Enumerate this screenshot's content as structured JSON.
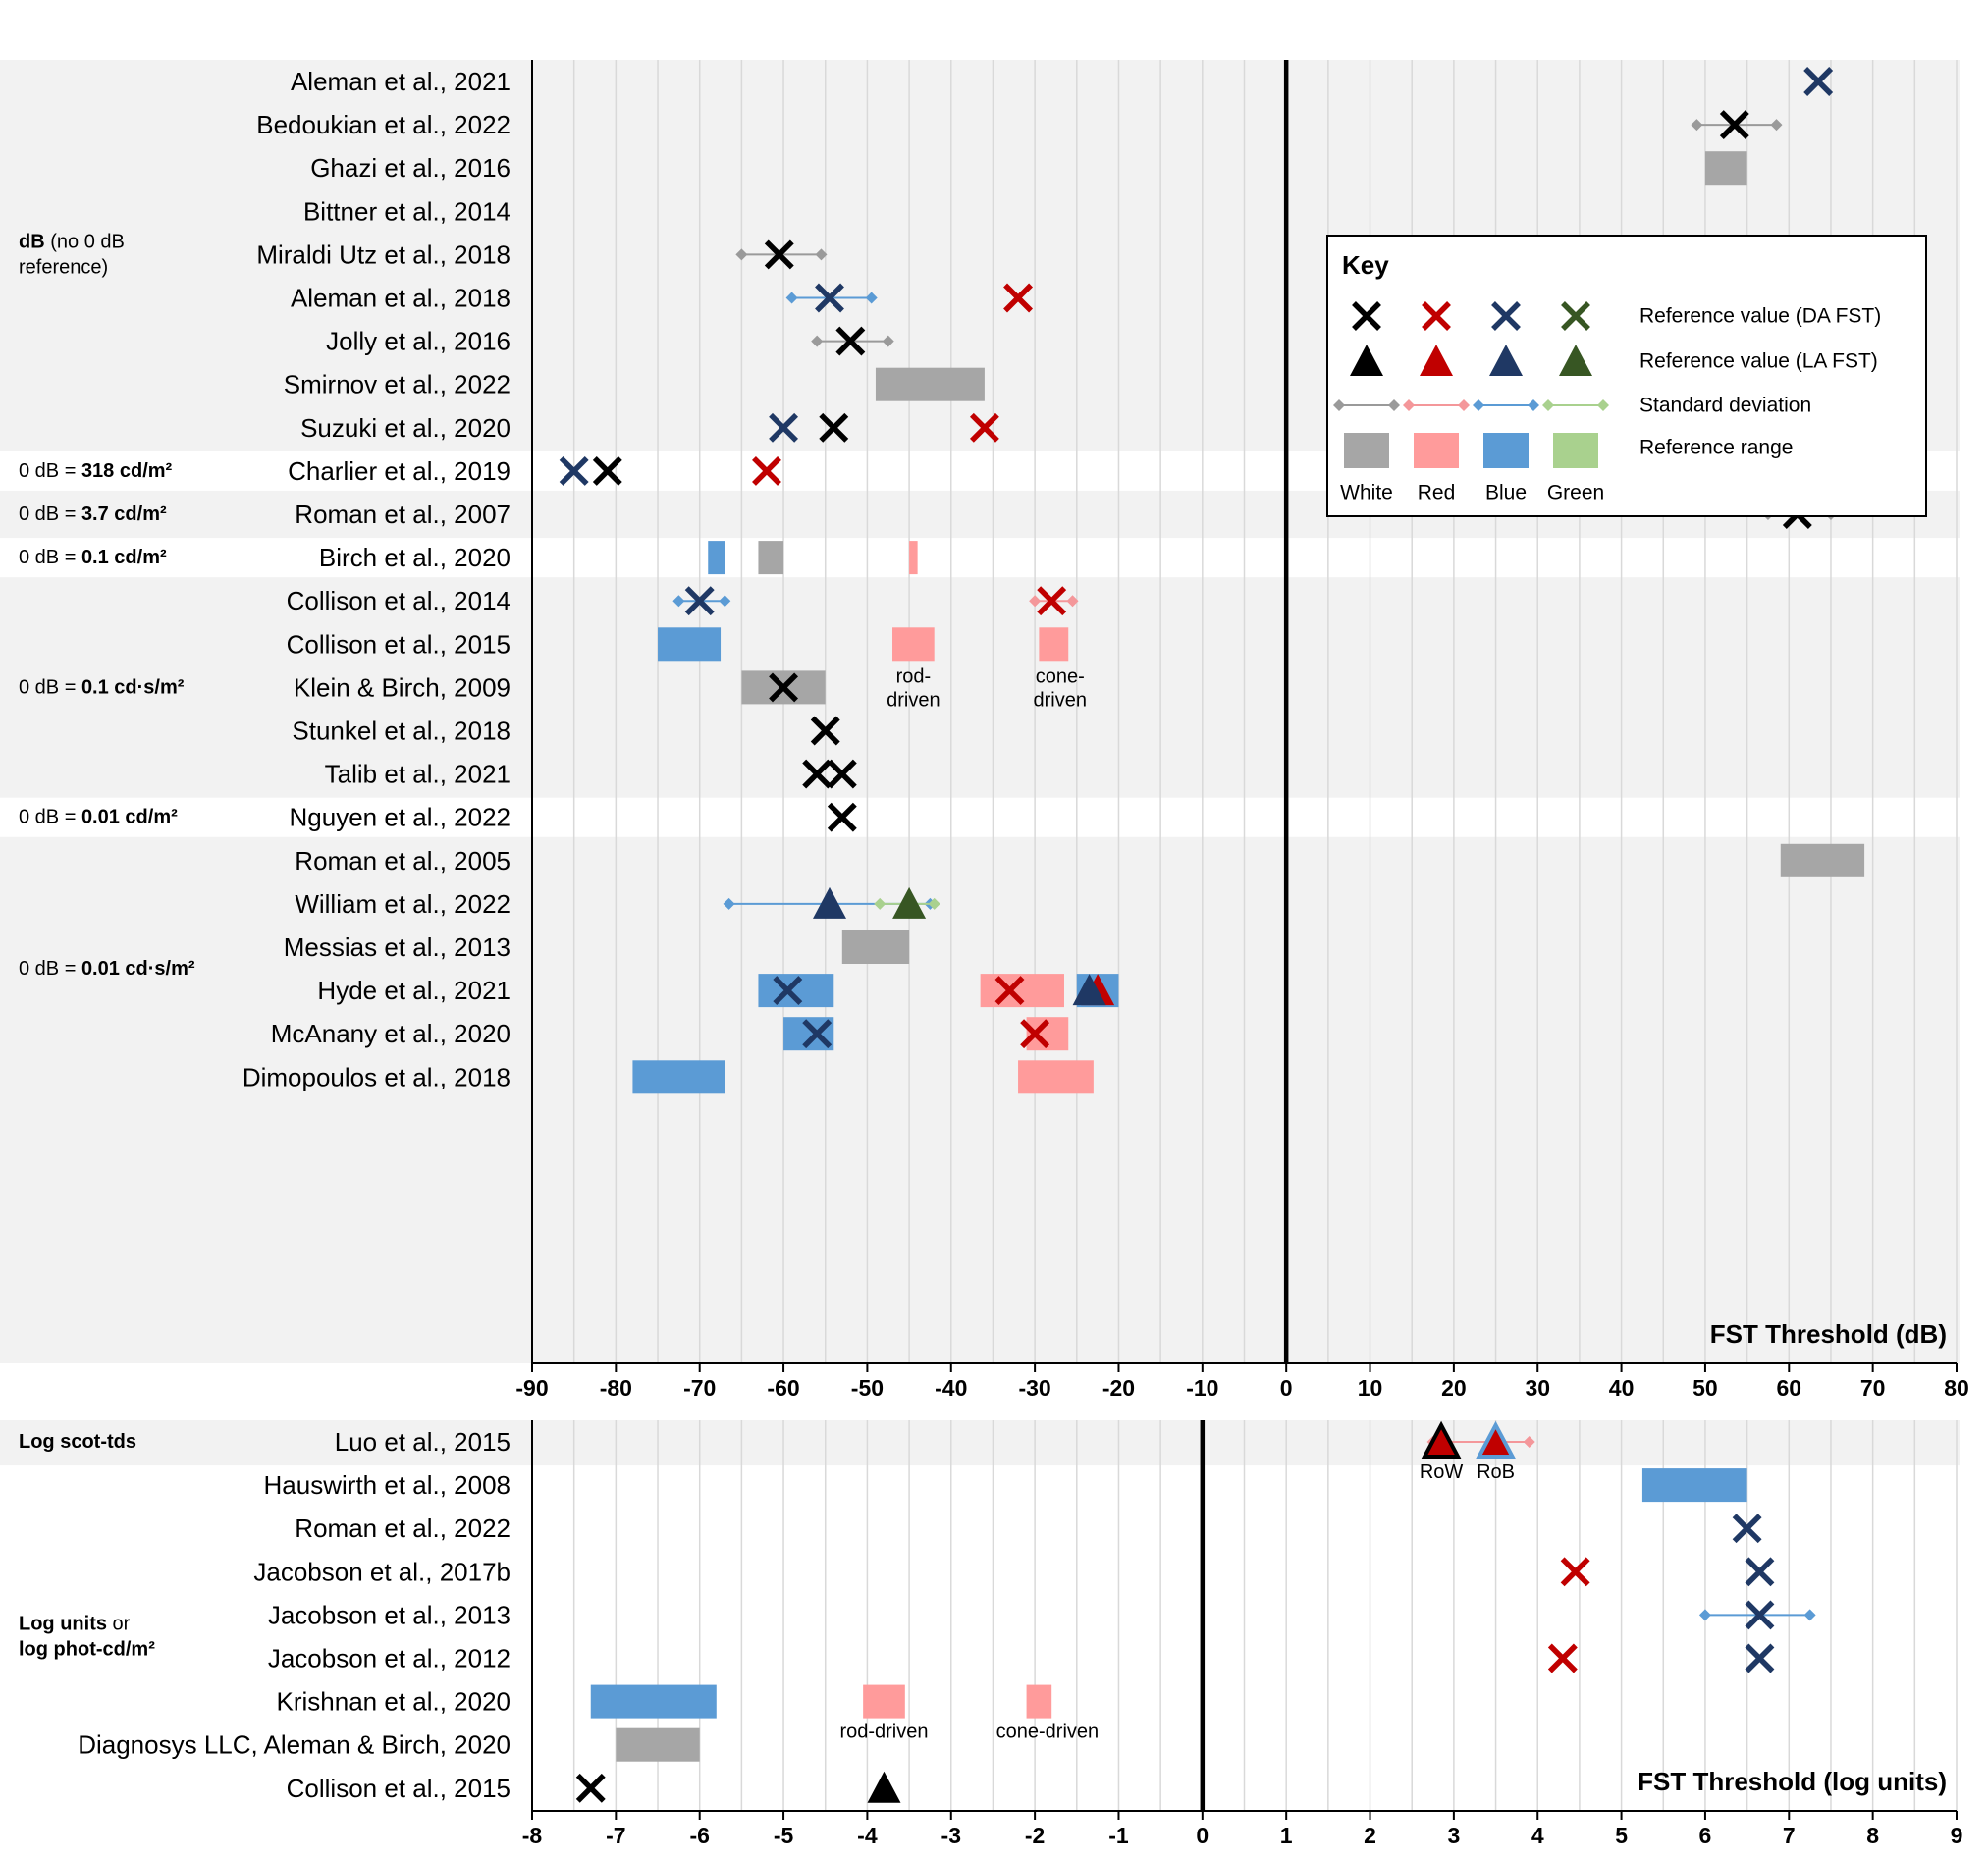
{
  "colors": {
    "white_x": "#000000",
    "white_sd": "#9a9a9a",
    "white_range": "#a6a6a6",
    "red_x": "#c00000",
    "red_sd": "#f4979a",
    "red_range": "#ff9b9b",
    "blue_x": "#1f3864",
    "blue_sd": "#5b9bd5",
    "blue_range": "#5b9bd5",
    "green_x": "#375623",
    "green_sd": "#a9d18e",
    "green_range": "#a9d18e",
    "band": "#f2f2f2"
  },
  "legend": {
    "title": "Key",
    "rows": [
      "Reference value (DA FST)",
      "Reference value (LA FST)",
      "Standard deviation",
      "Reference range"
    ],
    "colors": [
      "White",
      "Red",
      "Blue",
      "Green"
    ]
  },
  "chart_data": [
    {
      "type": "scatter",
      "title": "FST Threshold (dB)",
      "xlabel": "FST Threshold (dB)",
      "xlim": [
        -90,
        80
      ],
      "xticks": [
        -90,
        -80,
        -70,
        -60,
        -50,
        -40,
        -30,
        -20,
        -10,
        0,
        10,
        20,
        30,
        40,
        50,
        60,
        70,
        80
      ],
      "groups": [
        {
          "label_plain": "dB",
          "label_rest": " (no 0 dB",
          "label_line2": "reference)",
          "shaded": true,
          "rows": [
            0,
            8
          ]
        },
        {
          "label_plain": "0 dB = ",
          "label_bold": "318 cd/m²",
          "shaded": false,
          "rows": [
            9,
            9
          ]
        },
        {
          "label_plain": "0 dB = ",
          "label_bold": "3.7 cd/m²",
          "shaded": true,
          "rows": [
            10,
            10
          ]
        },
        {
          "label_plain": "0 dB = ",
          "label_bold": "0.1 cd/m²",
          "shaded": false,
          "rows": [
            11,
            11
          ]
        },
        {
          "label_plain": "0 dB = ",
          "label_bold": "0.1 cd·s/m²",
          "shaded": true,
          "rows": [
            12,
            16
          ]
        },
        {
          "label_plain": "0 dB = ",
          "label_bold": "0.01 cd/m²",
          "shaded": false,
          "rows": [
            17,
            17
          ]
        },
        {
          "label_plain": "0 dB = ",
          "label_bold": "0.01 cd·s/m²",
          "shaded": true,
          "rows": [
            18,
            23
          ]
        }
      ],
      "studies": [
        "Aleman et al., 2021",
        "Bedoukian et al., 2022",
        "Ghazi et al., 2016",
        "Bittner et al., 2014",
        "Miraldi Utz et al., 2018",
        "Aleman et al., 2018",
        "Jolly et al., 2016",
        "Smirnov et al., 2022",
        "Suzuki et al., 2020",
        "Charlier et al., 2019",
        "Roman et al., 2007",
        "Birch et al., 2020",
        "Collison et al., 2014",
        "Collison et al., 2015",
        "Klein & Birch, 2009",
        "Stunkel et al., 2018",
        "Talib et al., 2021",
        "Nguyen et al., 2022",
        "Roman et al., 2005",
        "William et al., 2022",
        "Messias et al., 2013",
        "Hyde et al., 2021",
        "McAnany et al., 2020",
        "Dimopoulos et al., 2018"
      ],
      "marks": [
        {
          "row": 0,
          "kind": "x",
          "color": "blue",
          "x": 63.5
        },
        {
          "row": 1,
          "kind": "sd",
          "color": "white",
          "x1": 49,
          "x2": 58.5
        },
        {
          "row": 1,
          "kind": "x",
          "color": "white",
          "x": 53.5
        },
        {
          "row": 2,
          "kind": "range",
          "color": "white",
          "x1": 50,
          "x2": 55
        },
        {
          "row": 4,
          "kind": "sd",
          "color": "white",
          "x1": -65,
          "x2": -55.5
        },
        {
          "row": 4,
          "kind": "x",
          "color": "white",
          "x": -60.5
        },
        {
          "row": 5,
          "kind": "sd",
          "color": "blue",
          "x1": -59,
          "x2": -49.5
        },
        {
          "row": 5,
          "kind": "x",
          "color": "blue",
          "x": -54.5
        },
        {
          "row": 5,
          "kind": "x",
          "color": "red",
          "x": -32
        },
        {
          "row": 6,
          "kind": "sd",
          "color": "white",
          "x1": -56,
          "x2": -47.5
        },
        {
          "row": 6,
          "kind": "x",
          "color": "white",
          "x": -52
        },
        {
          "row": 7,
          "kind": "range",
          "color": "white",
          "x1": -49,
          "x2": -36
        },
        {
          "row": 8,
          "kind": "x",
          "color": "blue",
          "x": -60
        },
        {
          "row": 8,
          "kind": "x",
          "color": "white",
          "x": -54
        },
        {
          "row": 8,
          "kind": "x",
          "color": "red",
          "x": -36
        },
        {
          "row": 9,
          "kind": "x",
          "color": "blue",
          "x": -85
        },
        {
          "row": 9,
          "kind": "x",
          "color": "white",
          "x": -81
        },
        {
          "row": 9,
          "kind": "x",
          "color": "red",
          "x": -62
        },
        {
          "row": 10,
          "kind": "sd",
          "color": "white",
          "x1": 57.5,
          "x2": 65
        },
        {
          "row": 10,
          "kind": "x",
          "color": "white",
          "x": 61
        },
        {
          "row": 11,
          "kind": "range",
          "color": "blue",
          "x1": -69,
          "x2": -67
        },
        {
          "row": 11,
          "kind": "range",
          "color": "white",
          "x1": -63,
          "x2": -60
        },
        {
          "row": 11,
          "kind": "range",
          "color": "red",
          "x1": -45,
          "x2": -44
        },
        {
          "row": 12,
          "kind": "sd",
          "color": "blue",
          "x1": -72.5,
          "x2": -67
        },
        {
          "row": 12,
          "kind": "x",
          "color": "blue",
          "x": -70
        },
        {
          "row": 12,
          "kind": "sd",
          "color": "red",
          "x1": -30,
          "x2": -25.5
        },
        {
          "row": 12,
          "kind": "x",
          "color": "red",
          "x": -28
        },
        {
          "row": 13,
          "kind": "range",
          "color": "blue",
          "x1": -75,
          "x2": -67.5
        },
        {
          "row": 13,
          "kind": "range",
          "color": "red",
          "x1": -47,
          "x2": -42
        },
        {
          "row": 13,
          "kind": "range",
          "color": "red",
          "x1": -29.5,
          "x2": -26
        },
        {
          "row": 14,
          "kind": "range",
          "color": "white",
          "x1": -65,
          "x2": -55
        },
        {
          "row": 14,
          "kind": "x",
          "color": "white",
          "x": -60
        },
        {
          "row": 15,
          "kind": "x",
          "color": "white",
          "x": -55
        },
        {
          "row": 16,
          "kind": "x",
          "color": "white",
          "x": -56
        },
        {
          "row": 16,
          "kind": "x",
          "color": "white",
          "x": -53
        },
        {
          "row": 17,
          "kind": "x",
          "color": "white",
          "x": -53
        },
        {
          "row": 18,
          "kind": "range",
          "color": "white",
          "x1": 59,
          "x2": 69
        },
        {
          "row": 19,
          "kind": "sd",
          "color": "blue",
          "x1": -66.5,
          "x2": -42.5
        },
        {
          "row": 19,
          "kind": "sd",
          "color": "green",
          "x1": -48.5,
          "x2": -42
        },
        {
          "row": 19,
          "kind": "tri",
          "color": "blue",
          "x": -54.5
        },
        {
          "row": 19,
          "kind": "tri",
          "color": "green",
          "x": -45
        },
        {
          "row": 20,
          "kind": "range",
          "color": "white",
          "x1": -53,
          "x2": -45
        },
        {
          "row": 21,
          "kind": "range",
          "color": "blue",
          "x1": -63,
          "x2": -54
        },
        {
          "row": 21,
          "kind": "x",
          "color": "blue",
          "x": -59.5
        },
        {
          "row": 21,
          "kind": "range",
          "color": "red",
          "x1": -36.5,
          "x2": -26.5
        },
        {
          "row": 21,
          "kind": "x",
          "color": "red",
          "x": -33
        },
        {
          "row": 21,
          "kind": "range",
          "color": "blue",
          "x1": -25,
          "x2": -20
        },
        {
          "row": 21,
          "kind": "tri",
          "color": "red",
          "x": -22.5
        },
        {
          "row": 21,
          "kind": "tri",
          "color": "blue",
          "x": -23.5
        },
        {
          "row": 22,
          "kind": "range",
          "color": "blue",
          "x1": -60,
          "x2": -54
        },
        {
          "row": 22,
          "kind": "range",
          "color": "red",
          "x1": -31,
          "x2": -26
        },
        {
          "row": 22,
          "kind": "x",
          "color": "blue",
          "x": -56
        },
        {
          "row": 22,
          "kind": "x",
          "color": "red",
          "x": -30
        },
        {
          "row": 23,
          "kind": "range",
          "color": "blue",
          "x1": -78,
          "x2": -67
        },
        {
          "row": 23,
          "kind": "range",
          "color": "red",
          "x1": -32,
          "x2": -23
        }
      ],
      "annotations": [
        {
          "text": "rod-",
          "text2": "driven",
          "x": -44.5,
          "row": 14
        },
        {
          "text": "cone-",
          "text2": "driven",
          "x": -27,
          "row": 14
        }
      ]
    },
    {
      "type": "scatter",
      "title": "FST Threshold (log units)",
      "xlabel": "FST Threshold (log units)",
      "xlim": [
        -8,
        9
      ],
      "xticks": [
        -8,
        -7,
        -6,
        -5,
        -4,
        -3,
        -2,
        -1,
        0,
        1,
        2,
        3,
        4,
        5,
        6,
        7,
        8,
        9
      ],
      "groups": [
        {
          "label_bold": "Log scot-tds",
          "shaded": true,
          "rows": [
            0,
            0
          ]
        },
        {
          "label_bold": "Log units",
          "label_rest": " or",
          "label_bold2": "log phot-cd/m²",
          "shaded": false,
          "rows": [
            1,
            8
          ]
        }
      ],
      "studies": [
        "Luo et al., 2015",
        "Hauswirth et al., 2008",
        "Roman et al., 2022",
        "Jacobson et al., 2017b",
        "Jacobson et al., 2013",
        "Jacobson et al., 2012",
        "Krishnan et al., 2020",
        "Diagnosys LLC, Aleman & Birch, 2020",
        "Collison et al., 2015"
      ],
      "marks": [
        {
          "row": 0,
          "kind": "sd",
          "color": "red",
          "x1": 2.75,
          "x2": 3.9
        },
        {
          "row": 0,
          "kind": "tri_outline",
          "color": "white",
          "inner": "red",
          "x": 2.85
        },
        {
          "row": 0,
          "kind": "tri_outline",
          "color": "blue",
          "inner": "red",
          "x": 3.5
        },
        {
          "row": 1,
          "kind": "range",
          "color": "blue",
          "x1": 5.25,
          "x2": 6.5
        },
        {
          "row": 2,
          "kind": "x",
          "color": "blue",
          "x": 6.5
        },
        {
          "row": 3,
          "kind": "x",
          "color": "red",
          "x": 4.45
        },
        {
          "row": 3,
          "kind": "x",
          "color": "blue",
          "x": 6.65
        },
        {
          "row": 4,
          "kind": "sd",
          "color": "blue",
          "x1": 6,
          "x2": 7.25
        },
        {
          "row": 4,
          "kind": "x",
          "color": "blue",
          "x": 6.65
        },
        {
          "row": 5,
          "kind": "x",
          "color": "red",
          "x": 4.3
        },
        {
          "row": 5,
          "kind": "x",
          "color": "blue",
          "x": 6.65
        },
        {
          "row": 6,
          "kind": "range",
          "color": "blue",
          "x1": -7.3,
          "x2": -5.8
        },
        {
          "row": 6,
          "kind": "range",
          "color": "red",
          "x1": -4.05,
          "x2": -3.55
        },
        {
          "row": 6,
          "kind": "range",
          "color": "red",
          "x1": -2.1,
          "x2": -1.8
        },
        {
          "row": 7,
          "kind": "range",
          "color": "white",
          "x1": -7,
          "x2": -6
        },
        {
          "row": 8,
          "kind": "x",
          "color": "white",
          "x": -7.3
        },
        {
          "row": 8,
          "kind": "tri",
          "color": "white",
          "x": -3.8
        }
      ],
      "annotations": [
        {
          "text": "RoW",
          "x": 2.85,
          "row": 0,
          "below": true
        },
        {
          "text": "RoB",
          "x": 3.5,
          "row": 0,
          "below": true
        },
        {
          "text": "rod-driven",
          "x": -3.8,
          "row": 6,
          "below": true
        },
        {
          "text": "cone-driven",
          "x": -1.85,
          "row": 6,
          "below": true
        }
      ]
    }
  ]
}
